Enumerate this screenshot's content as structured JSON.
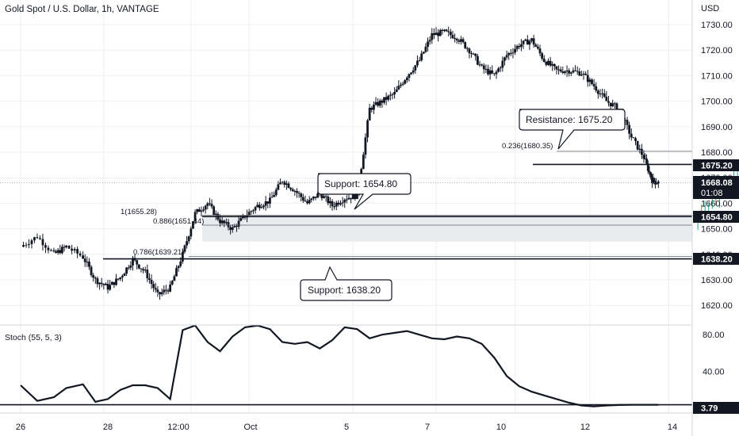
{
  "header": {
    "symbol_line": "Gold Spot / U.S. Dollar, 1h, VANTAGE"
  },
  "price_axis": {
    "currency": "USD",
    "ticks": [
      "1730.00",
      "1720.00",
      "1710.00",
      "1700.00",
      "1690.00",
      "1680.00",
      "1670.00",
      "1660.00",
      "1650.00",
      "1640.00",
      "1630.00",
      "1620.00"
    ],
    "last_price": "1668.08",
    "countdown": "01:08",
    "level_labels": [
      "1675.20",
      "1654.80",
      "1638.20"
    ]
  },
  "time_axis": {
    "ticks": [
      "26",
      "28",
      "12:00",
      "Oct",
      "5",
      "7",
      "10",
      "12",
      "14"
    ]
  },
  "annotations": {
    "resistance_callout": "Resistance: 1675.20",
    "support_callout_1": "Support: 1654.80",
    "support_callout_2": "Support: 1638.20",
    "fib_1": "1(1655.28)",
    "fib_0886": "0.886(1651.44)",
    "fib_0786": "0.786(1639.21)",
    "fib_0236": "0.236(1680.35)"
  },
  "stoch": {
    "title": "Stoch (55, 5, 3)",
    "ticks": [
      "80.00",
      "40.00"
    ],
    "last_value": "3.79"
  },
  "colors": {
    "candle": "#131722",
    "grid": "#eef0f3",
    "projection_up": "#26a69a",
    "projection_down": "#ef5350",
    "zone": "#e9ebef"
  },
  "chart_data": [
    {
      "type": "candlestick",
      "title": "Gold Spot / U.S. Dollar, 1h, VANTAGE",
      "xlabel": "",
      "ylabel": "USD",
      "ylim": [
        1612,
        1737
      ],
      "x_ticks": [
        "26",
        "28",
        "12:00",
        "Oct",
        "5",
        "7",
        "10",
        "12",
        "14"
      ],
      "series": [
        {
          "close_path": [
            [
              0,
              1643
            ],
            [
              0.4,
              1647
            ],
            [
              0.8,
              1640
            ],
            [
              1.1,
              1643
            ],
            [
              1.5,
              1639
            ],
            [
              1.8,
              1630
            ],
            [
              2.1,
              1627
            ],
            [
              2.4,
              1631
            ],
            [
              2.7,
              1638
            ],
            [
              3.0,
              1633
            ],
            [
              3.3,
              1624
            ],
            [
              3.6,
              1627
            ],
            [
              3.9,
              1640
            ],
            [
              4.2,
              1656
            ],
            [
              4.5,
              1660
            ],
            [
              4.8,
              1653
            ],
            [
              5.1,
              1650
            ],
            [
              5.4,
              1655
            ],
            [
              5.7,
              1659
            ],
            [
              6.0,
              1661
            ],
            [
              6.3,
              1669
            ],
            [
              6.6,
              1665
            ],
            [
              6.9,
              1660
            ],
            [
              7.2,
              1664
            ],
            [
              7.5,
              1659
            ],
            [
              7.8,
              1662
            ],
            [
              8.1,
              1663
            ],
            [
              8.4,
              1697
            ],
            [
              8.7,
              1700
            ],
            [
              9.0,
              1703
            ],
            [
              9.3,
              1710
            ],
            [
              9.6,
              1716
            ],
            [
              9.9,
              1726
            ],
            [
              10.2,
              1727
            ],
            [
              10.5,
              1725
            ],
            [
              10.8,
              1720
            ],
            [
              11.1,
              1713
            ],
            [
              11.4,
              1710
            ],
            [
              11.7,
              1718
            ],
            [
              12.0,
              1722
            ],
            [
              12.3,
              1724
            ],
            [
              12.6,
              1716
            ],
            [
              12.9,
              1712
            ],
            [
              13.2,
              1712
            ],
            [
              13.5,
              1711
            ],
            [
              13.8,
              1706
            ],
            [
              14.1,
              1700
            ],
            [
              14.4,
              1697
            ],
            [
              14.7,
              1686
            ],
            [
              15.0,
              1678
            ],
            [
              15.2,
              1669
            ],
            [
              15.35,
              1668.08
            ]
          ]
        }
      ],
      "levels": {
        "resistance": 1675.2,
        "support": [
          1654.8,
          1638.2
        ],
        "fibonacci": [
          {
            "ratio": "1",
            "price": 1655.28
          },
          {
            "ratio": "0.886",
            "price": 1651.44
          },
          {
            "ratio": "0.786",
            "price": 1639.21
          },
          {
            "ratio": "0.236",
            "price": 1680.35
          }
        ],
        "zone": [
          1645,
          1654.8
        ]
      },
      "projection": [
        [
          16.3,
          1654
        ],
        [
          17.6,
          1676
        ]
      ],
      "last_price": 1668.08
    },
    {
      "type": "line",
      "title": "Stoch (55, 5, 3)",
      "ylim": [
        0,
        100
      ],
      "y_ticks": [
        80,
        40
      ],
      "last_value": 3.79,
      "x": [
        0,
        0.4,
        0.8,
        1.1,
        1.5,
        1.8,
        2.1,
        2.4,
        2.7,
        3.0,
        3.3,
        3.6,
        3.9,
        4.2,
        4.5,
        4.8,
        5.1,
        5.4,
        5.7,
        6.0,
        6.3,
        6.6,
        6.9,
        7.2,
        7.5,
        7.8,
        8.1,
        8.4,
        8.7,
        9.0,
        9.3,
        9.6,
        9.9,
        10.2,
        10.5,
        10.8,
        11.1,
        11.4,
        11.7,
        12.0,
        12.3,
        12.6,
        12.9,
        13.2,
        13.5,
        13.8,
        14.1,
        14.4,
        14.7,
        15.0,
        15.2,
        15.35
      ],
      "values": [
        25,
        8,
        12,
        22,
        26,
        7,
        10,
        20,
        25,
        25,
        22,
        10,
        85,
        90,
        72,
        62,
        78,
        88,
        90,
        86,
        72,
        70,
        72,
        65,
        74,
        88,
        86,
        76,
        80,
        82,
        84,
        80,
        76,
        75,
        78,
        76,
        70,
        55,
        35,
        24,
        18,
        14,
        10,
        6,
        3,
        2,
        3,
        3.5,
        3.8,
        3.79,
        3.79,
        3.79
      ]
    }
  ]
}
